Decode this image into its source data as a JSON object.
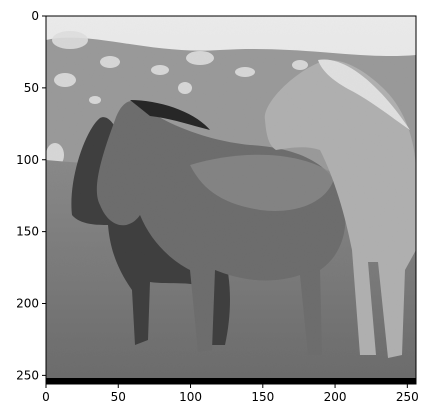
{
  "figure": {
    "image_description_icon": "grayscale-horses-photo-icon",
    "colormap": "gray"
  },
  "chart_data": {
    "type": "image",
    "xlim": [
      0,
      256
    ],
    "ylim": [
      256,
      0
    ],
    "x_ticks": [
      0,
      50,
      100,
      150,
      200,
      250
    ],
    "y_ticks": [
      0,
      50,
      100,
      150,
      200,
      250
    ],
    "x_tick_labels": [
      "0",
      "50",
      "100",
      "150",
      "200",
      "250"
    ],
    "y_tick_labels": [
      "0",
      "50",
      "100",
      "150",
      "200",
      "250"
    ],
    "title": "",
    "xlabel": "",
    "ylabel": ""
  }
}
